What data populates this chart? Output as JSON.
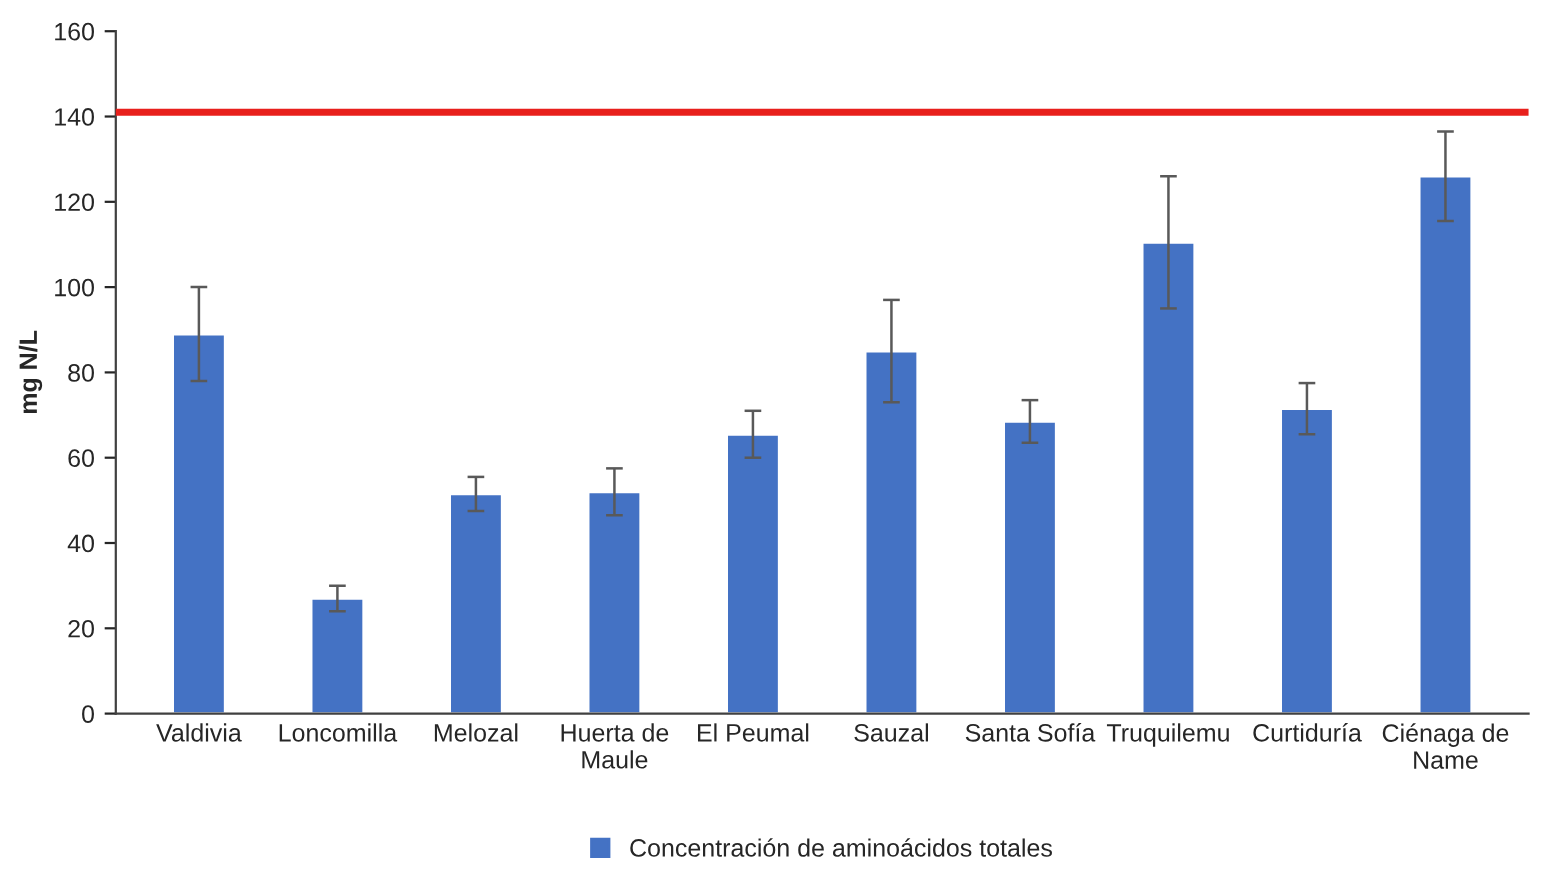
{
  "chart_data": {
    "type": "bar",
    "ylabel": "mg N/L",
    "categories": [
      "Valdivia",
      "Loncomilla",
      "Melozal",
      "Huerta de\nMaule",
      "El Peumal",
      "Sauzal",
      "Santa Sofía",
      "Truquilemu",
      "Curtiduría",
      "Ciénaga de\nName"
    ],
    "series": [
      {
        "name": "Concentración de aminoácidos totales",
        "color": "#4472c4",
        "values": [
          89,
          27,
          51.5,
          52,
          65.5,
          85,
          68.5,
          110.5,
          71.5,
          126
        ],
        "errors": [
          11,
          3,
          4,
          5.5,
          5.5,
          12,
          5,
          15.5,
          6,
          10.5
        ]
      }
    ],
    "ylim": [
      0,
      160
    ],
    "yticks": [
      0,
      20,
      40,
      60,
      80,
      100,
      120,
      140,
      160
    ],
    "ref_lines": [
      {
        "axis": "y",
        "value": 141,
        "color": "#e8201c"
      }
    ],
    "legend": "bottom",
    "grid": false
  }
}
